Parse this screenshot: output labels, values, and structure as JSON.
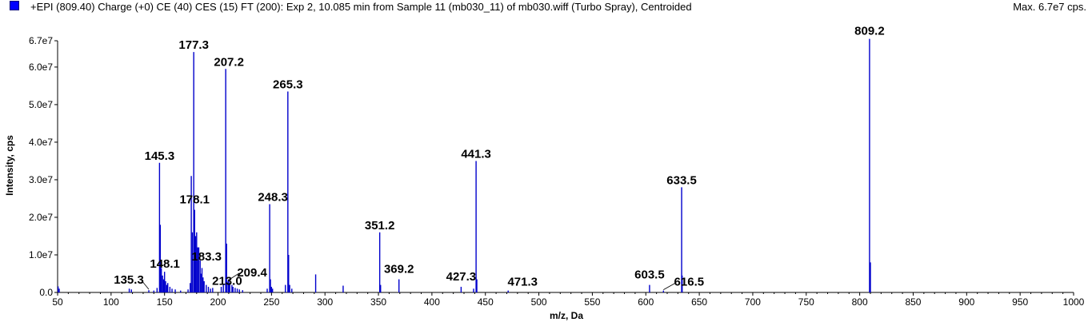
{
  "header": {
    "title": "+EPI (809.40) Charge (+0) CE (40) CES (15) FT (200): Exp 2, 10.085 min from Sample 11 (mb030_11) of mb030.wiff (Turbo Spray), Centroided",
    "max_label": "Max. 6.7e7 cps.",
    "series_color": "#0000cc"
  },
  "chart_data": {
    "type": "bar",
    "xlabel": "m/z, Da",
    "ylabel": "Intensity, cps",
    "xlim": [
      50,
      1000
    ],
    "ylim": [
      0,
      67000000.0
    ],
    "x_ticks": [
      50,
      100,
      150,
      200,
      250,
      300,
      350,
      400,
      450,
      500,
      550,
      600,
      650,
      700,
      750,
      800,
      850,
      900,
      950,
      1000
    ],
    "y_ticks": [
      {
        "value": 0,
        "label": "0.0"
      },
      {
        "value": 10000000.0,
        "label": "1.0e7"
      },
      {
        "value": 20000000.0,
        "label": "2.0e7"
      },
      {
        "value": 30000000.0,
        "label": "3.0e7"
      },
      {
        "value": 40000000.0,
        "label": "4.0e7"
      },
      {
        "value": 50000000.0,
        "label": "5.0e7"
      },
      {
        "value": 60000000.0,
        "label": "6.0e7"
      },
      {
        "value": 67000000.0,
        "label": "6.7e7"
      }
    ],
    "peaks": [
      {
        "x": 50.5,
        "y": 1600000.0
      },
      {
        "x": 51.5,
        "y": 1000000.0
      },
      {
        "x": 117,
        "y": 1000000.0
      },
      {
        "x": 119,
        "y": 800000.0
      },
      {
        "x": 135.3,
        "y": 600000.0
      },
      {
        "x": 140,
        "y": 500000.0
      },
      {
        "x": 143,
        "y": 1200000.0
      },
      {
        "x": 145.3,
        "y": 34500000.0
      },
      {
        "x": 146,
        "y": 18000000.0
      },
      {
        "x": 147,
        "y": 6500000.0
      },
      {
        "x": 148.1,
        "y": 4500000.0
      },
      {
        "x": 149,
        "y": 3500000.0
      },
      {
        "x": 150,
        "y": 5500000.0
      },
      {
        "x": 151,
        "y": 3000000.0
      },
      {
        "x": 152,
        "y": 2000000.0
      },
      {
        "x": 153,
        "y": 2500000.0
      },
      {
        "x": 155,
        "y": 1500000.0
      },
      {
        "x": 157,
        "y": 1000000.0
      },
      {
        "x": 160,
        "y": 800000.0
      },
      {
        "x": 165,
        "y": 500000.0
      },
      {
        "x": 172,
        "y": 800000.0
      },
      {
        "x": 174,
        "y": 2500000.0
      },
      {
        "x": 175,
        "y": 31000000.0
      },
      {
        "x": 176,
        "y": 16000000.0
      },
      {
        "x": 177.3,
        "y": 64000000.0
      },
      {
        "x": 178.1,
        "y": 22000000.0
      },
      {
        "x": 179,
        "y": 15000000.0
      },
      {
        "x": 180,
        "y": 16000000.0
      },
      {
        "x": 181,
        "y": 12000000.0
      },
      {
        "x": 182,
        "y": 12000000.0
      },
      {
        "x": 183.3,
        "y": 8500000.0
      },
      {
        "x": 184,
        "y": 5000000.0
      },
      {
        "x": 185,
        "y": 6500000.0
      },
      {
        "x": 186,
        "y": 4000000.0
      },
      {
        "x": 187,
        "y": 3000000.0
      },
      {
        "x": 189,
        "y": 2000000.0
      },
      {
        "x": 191,
        "y": 1500000.0
      },
      {
        "x": 193,
        "y": 1000000.0
      },
      {
        "x": 195,
        "y": 1200000.0
      },
      {
        "x": 203,
        "y": 1500000.0
      },
      {
        "x": 205,
        "y": 2000000.0
      },
      {
        "x": 207.2,
        "y": 59500000.0
      },
      {
        "x": 208,
        "y": 13000000.0
      },
      {
        "x": 209.4,
        "y": 3000000.0
      },
      {
        "x": 210,
        "y": 3500000.0
      },
      {
        "x": 211,
        "y": 2500000.0
      },
      {
        "x": 213.0,
        "y": 2000000.0
      },
      {
        "x": 214,
        "y": 1500000.0
      },
      {
        "x": 216,
        "y": 1200000.0
      },
      {
        "x": 218,
        "y": 1000000.0
      },
      {
        "x": 220,
        "y": 800000.0
      },
      {
        "x": 223,
        "y": 600000.0
      },
      {
        "x": 246,
        "y": 1000000.0
      },
      {
        "x": 248.3,
        "y": 23500000.0
      },
      {
        "x": 249,
        "y": 3500000.0
      },
      {
        "x": 250,
        "y": 1500000.0
      },
      {
        "x": 251,
        "y": 1000000.0
      },
      {
        "x": 263,
        "y": 2000000.0
      },
      {
        "x": 265.3,
        "y": 53500000.0
      },
      {
        "x": 266,
        "y": 10000000.0
      },
      {
        "x": 267,
        "y": 2000000.0
      },
      {
        "x": 269,
        "y": 1000000.0
      },
      {
        "x": 291.3,
        "y": 4800000.0
      },
      {
        "x": 317,
        "y": 1800000.0
      },
      {
        "x": 351.2,
        "y": 16000000.0
      },
      {
        "x": 352,
        "y": 2000000.0
      },
      {
        "x": 369.2,
        "y": 3500000.0
      },
      {
        "x": 427.3,
        "y": 1500000.0
      },
      {
        "x": 439,
        "y": 1000000.0
      },
      {
        "x": 441.3,
        "y": 35000000.0
      },
      {
        "x": 442,
        "y": 3500000.0
      },
      {
        "x": 471.3,
        "y": 500000.0
      },
      {
        "x": 603.5,
        "y": 2000000.0
      },
      {
        "x": 616.5,
        "y": 500000.0
      },
      {
        "x": 633.5,
        "y": 28000000.0
      },
      {
        "x": 634,
        "y": 4500000.0
      },
      {
        "x": 809.2,
        "y": 67500000.0
      },
      {
        "x": 810,
        "y": 8000000.0
      }
    ],
    "annotations": [
      {
        "text": "809.2",
        "x": 809.2,
        "y": 67500000.0
      },
      {
        "text": "177.3",
        "x": 177.3,
        "y": 64000000.0
      },
      {
        "text": "207.2",
        "x": 207.2,
        "y": 59500000.0
      },
      {
        "text": "265.3",
        "x": 265.3,
        "y": 53500000.0
      },
      {
        "text": "441.3",
        "x": 441.3,
        "y": 35000000.0
      },
      {
        "text": "145.3",
        "x": 145.3,
        "y": 34500000.0
      },
      {
        "text": "633.5",
        "x": 633.5,
        "y": 28000000.0
      },
      {
        "text": "248.3",
        "x": 248.3,
        "y": 23500000.0
      },
      {
        "text": "178.1",
        "x": 178.1,
        "y": 22000000.0
      },
      {
        "text": "351.2",
        "x": 351.2,
        "y": 16000000.0
      },
      {
        "text": "183.3",
        "x": 183.3,
        "y": 8500000.0
      },
      {
        "text": "148.1",
        "x": 148.1,
        "y": 4500000.0
      },
      {
        "text": "369.2",
        "x": 369.2,
        "y": 3500000.0
      },
      {
        "text": "209.4",
        "x": 209.4,
        "y": 3000000.0
      },
      {
        "text": "213.0",
        "x": 213.0,
        "y": 2000000.0
      },
      {
        "text": "603.5",
        "x": 603.5,
        "y": 2000000.0
      },
      {
        "text": "427.3",
        "x": 427.3,
        "y": 1500000.0
      },
      {
        "text": "135.3",
        "x": 135.3,
        "y": 600000.0
      },
      {
        "text": "471.3",
        "x": 471.3,
        "y": 500000.0
      },
      {
        "text": "616.5",
        "x": 616.5,
        "y": 500000.0
      }
    ]
  }
}
